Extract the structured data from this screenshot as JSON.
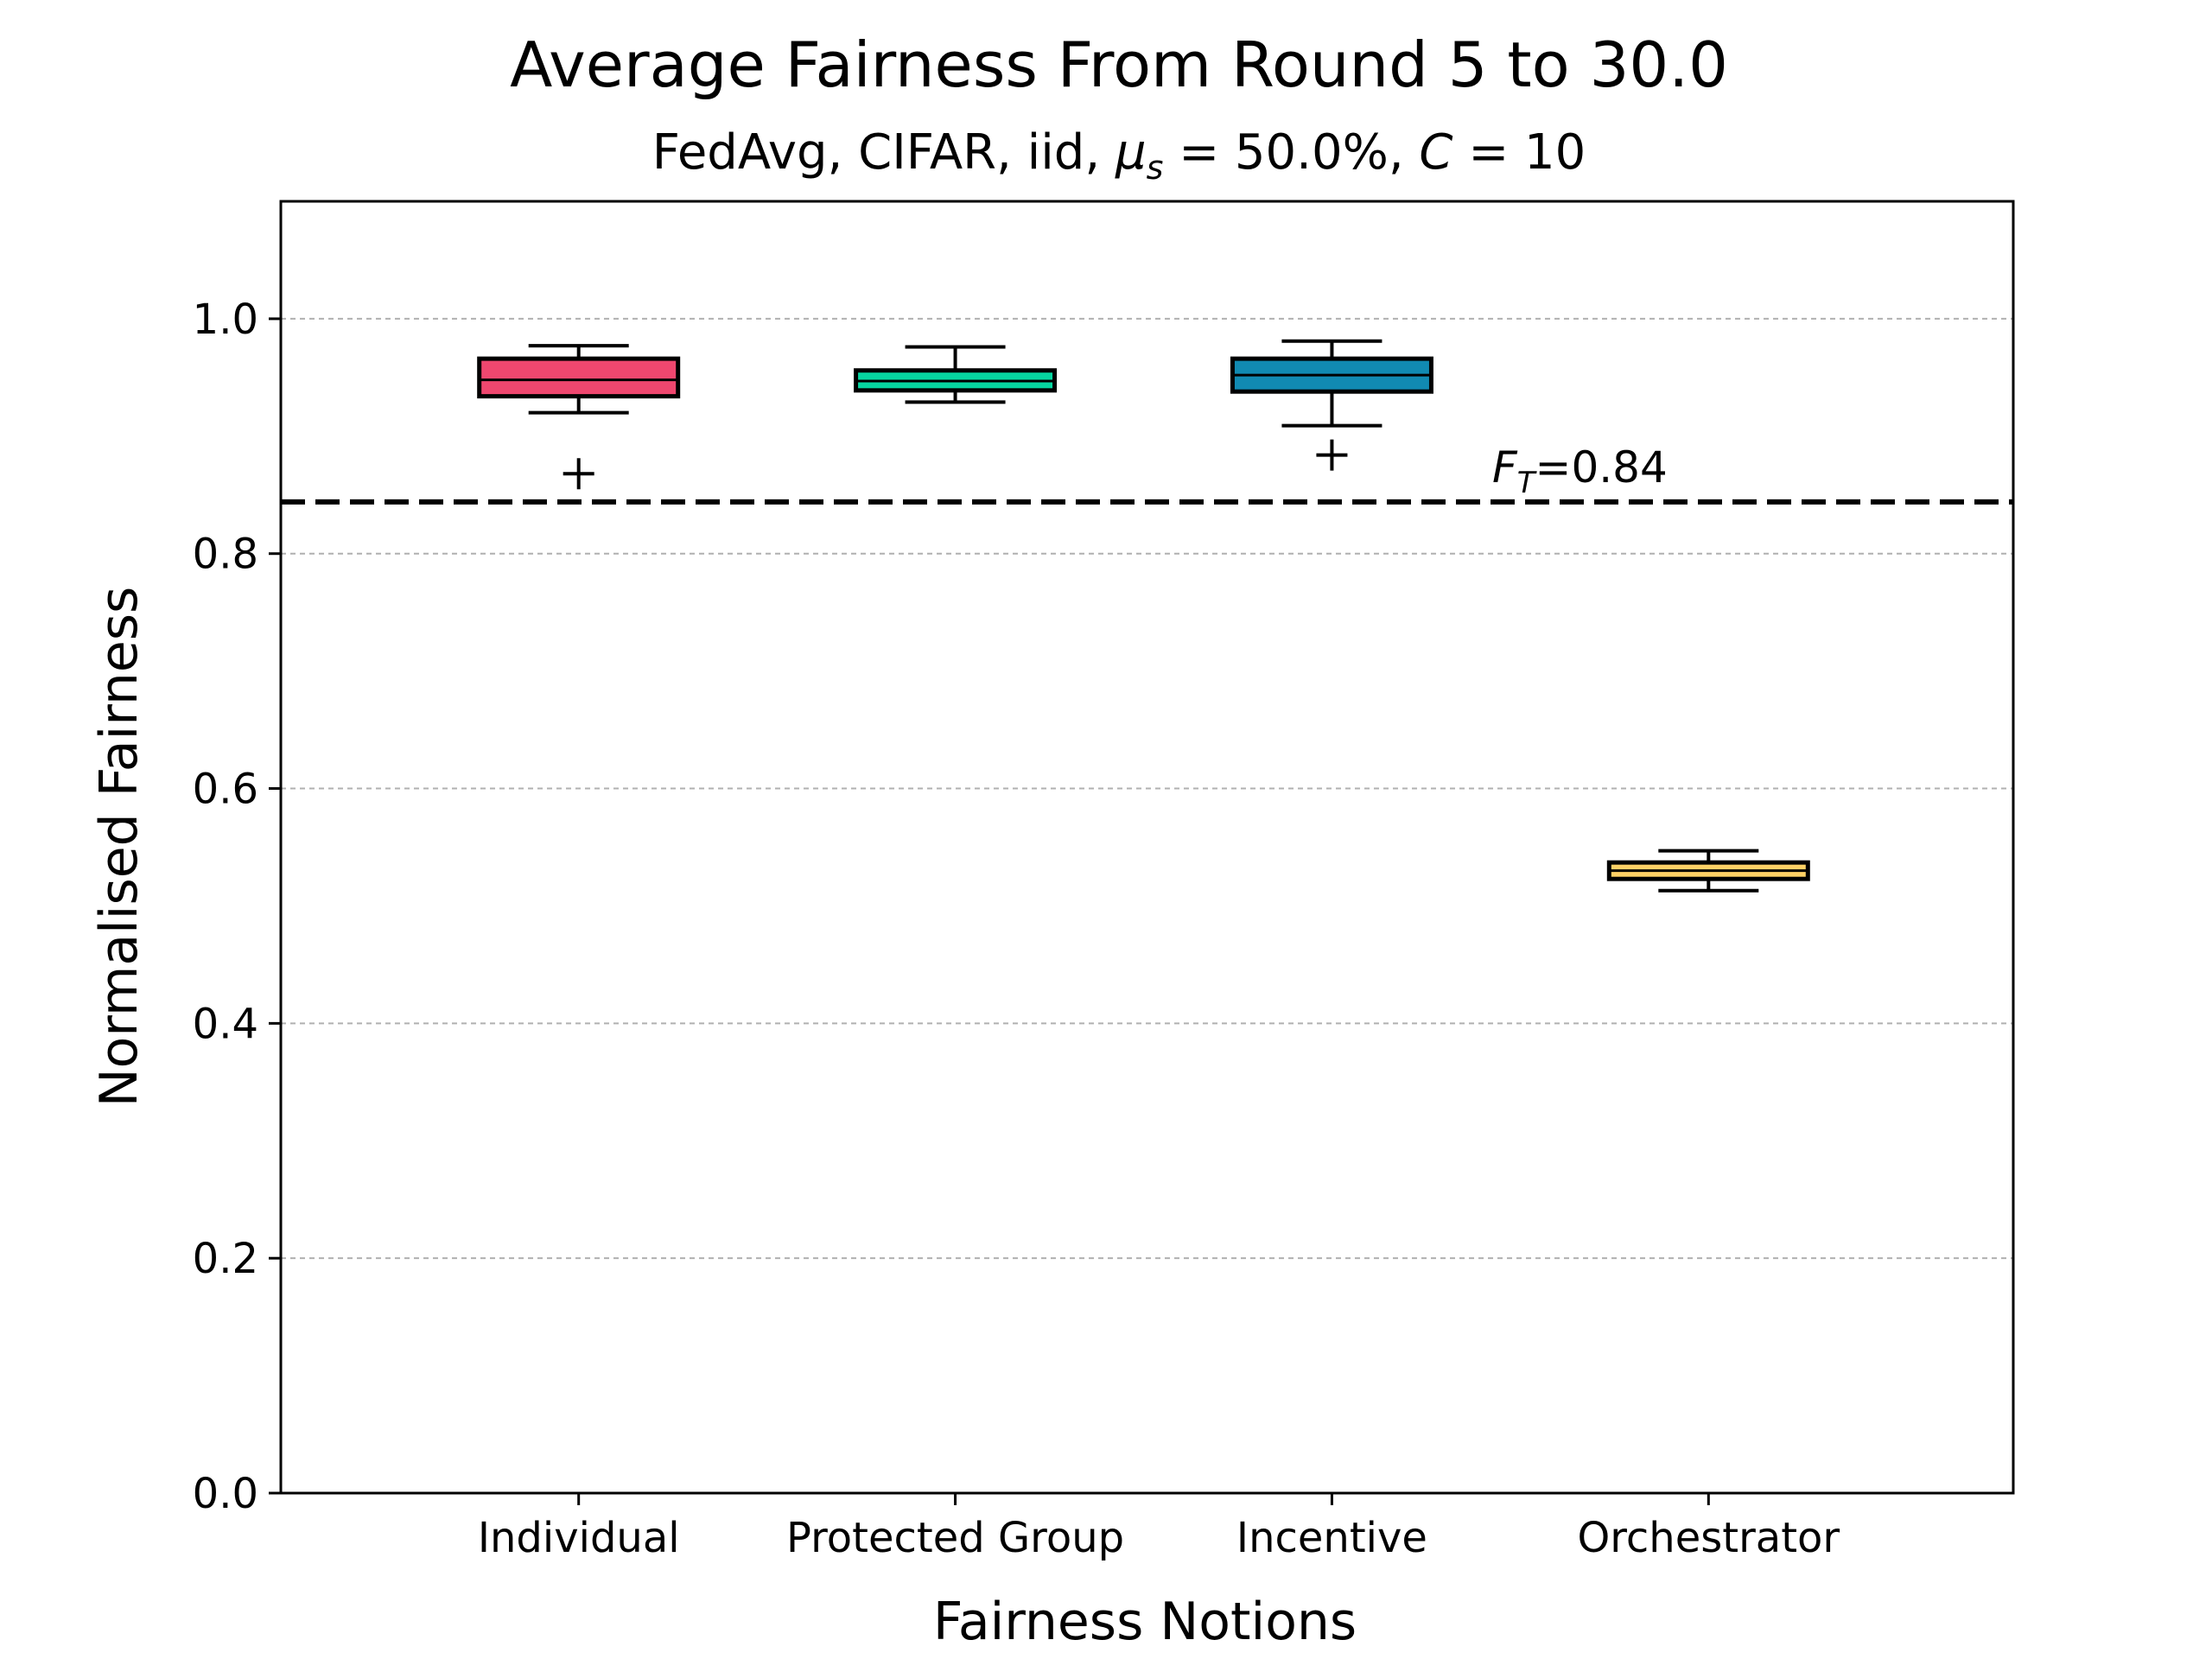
{
  "chart_data": {
    "type": "box",
    "title": "Average Fairness From Round 5 to 30.0",
    "subtitle_parts": [
      "FedAvg, CIFAR, iid, ",
      "μ",
      "s",
      " = 50.0%, ",
      "C",
      " = 10"
    ],
    "xlabel": "Fairness Notions",
    "ylabel": "Normalised Fairness",
    "ylim": [
      0,
      1.1
    ],
    "yticks": [
      "0.0",
      "0.2",
      "0.4",
      "0.6",
      "0.8",
      "1.0"
    ],
    "grid": "y-dashed",
    "categories": [
      "Individual",
      "Protected Group",
      "Incentive",
      "Orchestrator"
    ],
    "boxes": [
      {
        "category": "Individual",
        "whisker_low": 0.92,
        "q1": 0.934,
        "median": 0.948,
        "q3": 0.966,
        "whisker_high": 0.977,
        "outliers": [
          0.868
        ],
        "color": "#ef476f"
      },
      {
        "category": "Protected Group",
        "whisker_low": 0.929,
        "q1": 0.939,
        "median": 0.947,
        "q3": 0.956,
        "whisker_high": 0.976,
        "outliers": [],
        "color": "#06d6a0"
      },
      {
        "category": "Incentive",
        "whisker_low": 0.909,
        "q1": 0.938,
        "median": 0.952,
        "q3": 0.966,
        "whisker_high": 0.981,
        "outliers": [
          0.884
        ],
        "color": "#118ab2"
      },
      {
        "category": "Orchestrator",
        "whisker_low": 0.513,
        "q1": 0.523,
        "median": 0.53,
        "q3": 0.537,
        "whisker_high": 0.547,
        "outliers": [],
        "color": "#ffd166"
      }
    ],
    "threshold": {
      "value": 0.844,
      "label_var": "F",
      "label_sub": "T",
      "label_rest": "=0.84"
    }
  }
}
